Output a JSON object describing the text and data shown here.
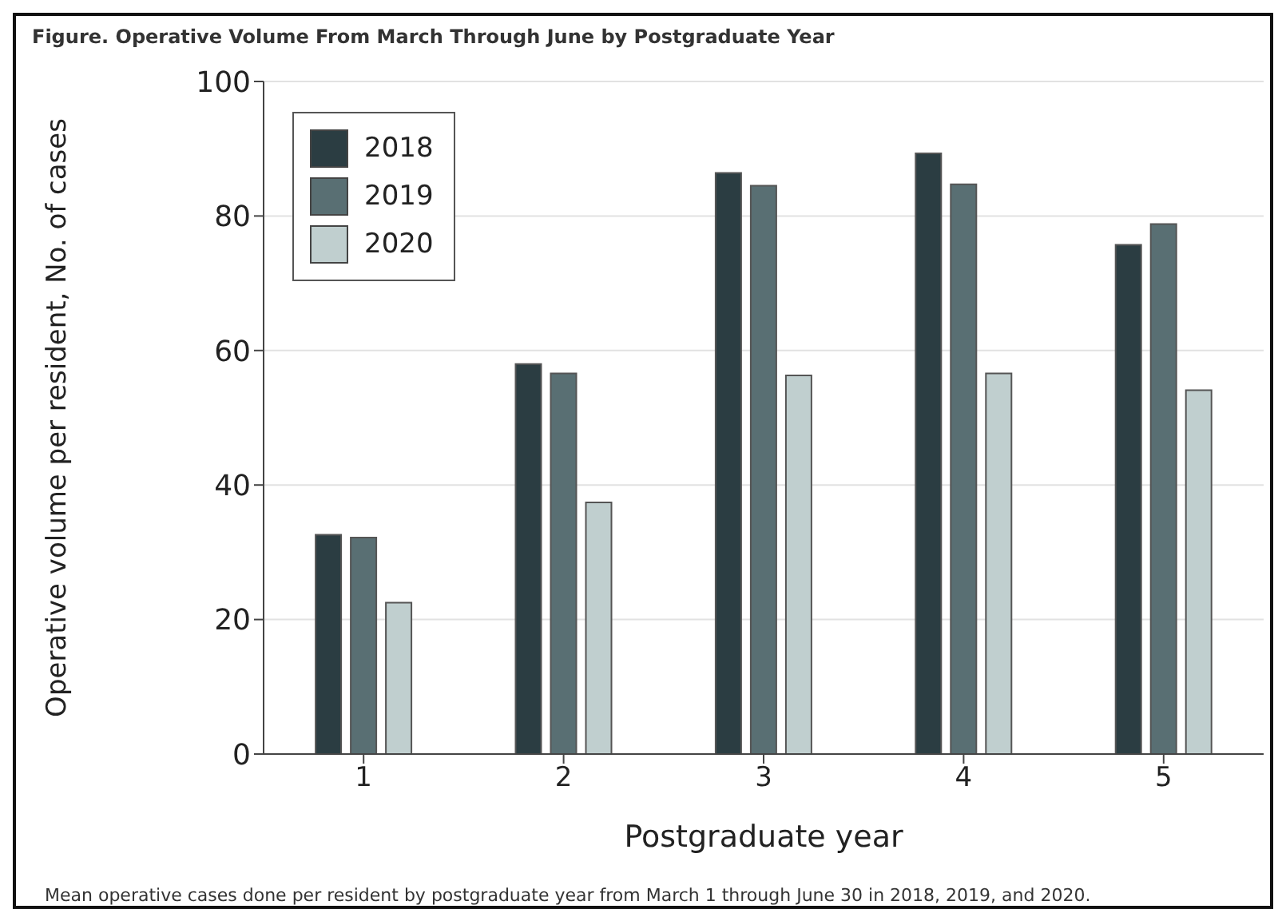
{
  "chart_data": {
    "type": "bar",
    "title": "Figure.  Operative Volume From March Through June by Postgraduate Year",
    "xlabel": "Postgraduate year",
    "ylabel": "Operative volume per resident, No. of cases",
    "annotations": [
      "Mean operative cases done per resident by postgraduate year from March 1 through June 30 in 2018, 2019, and 2020."
    ],
    "categories": [
      "1",
      "2",
      "3",
      "4",
      "5"
    ],
    "series": [
      {
        "name": "2018",
        "color": "#2b3d42",
        "values": [
          32.6,
          58.0,
          86.4,
          89.3,
          75.7
        ]
      },
      {
        "name": "2019",
        "color": "#596f73",
        "values": [
          32.2,
          56.6,
          84.5,
          84.7,
          78.8
        ]
      },
      {
        "name": "2020",
        "color": "#c0cfcf",
        "values": [
          22.5,
          37.4,
          56.3,
          56.6,
          54.1
        ]
      }
    ],
    "ylim": [
      0,
      100
    ],
    "yticks": [
      0,
      20,
      40,
      60,
      80,
      100
    ],
    "grid": "y",
    "legend": "top left"
  }
}
